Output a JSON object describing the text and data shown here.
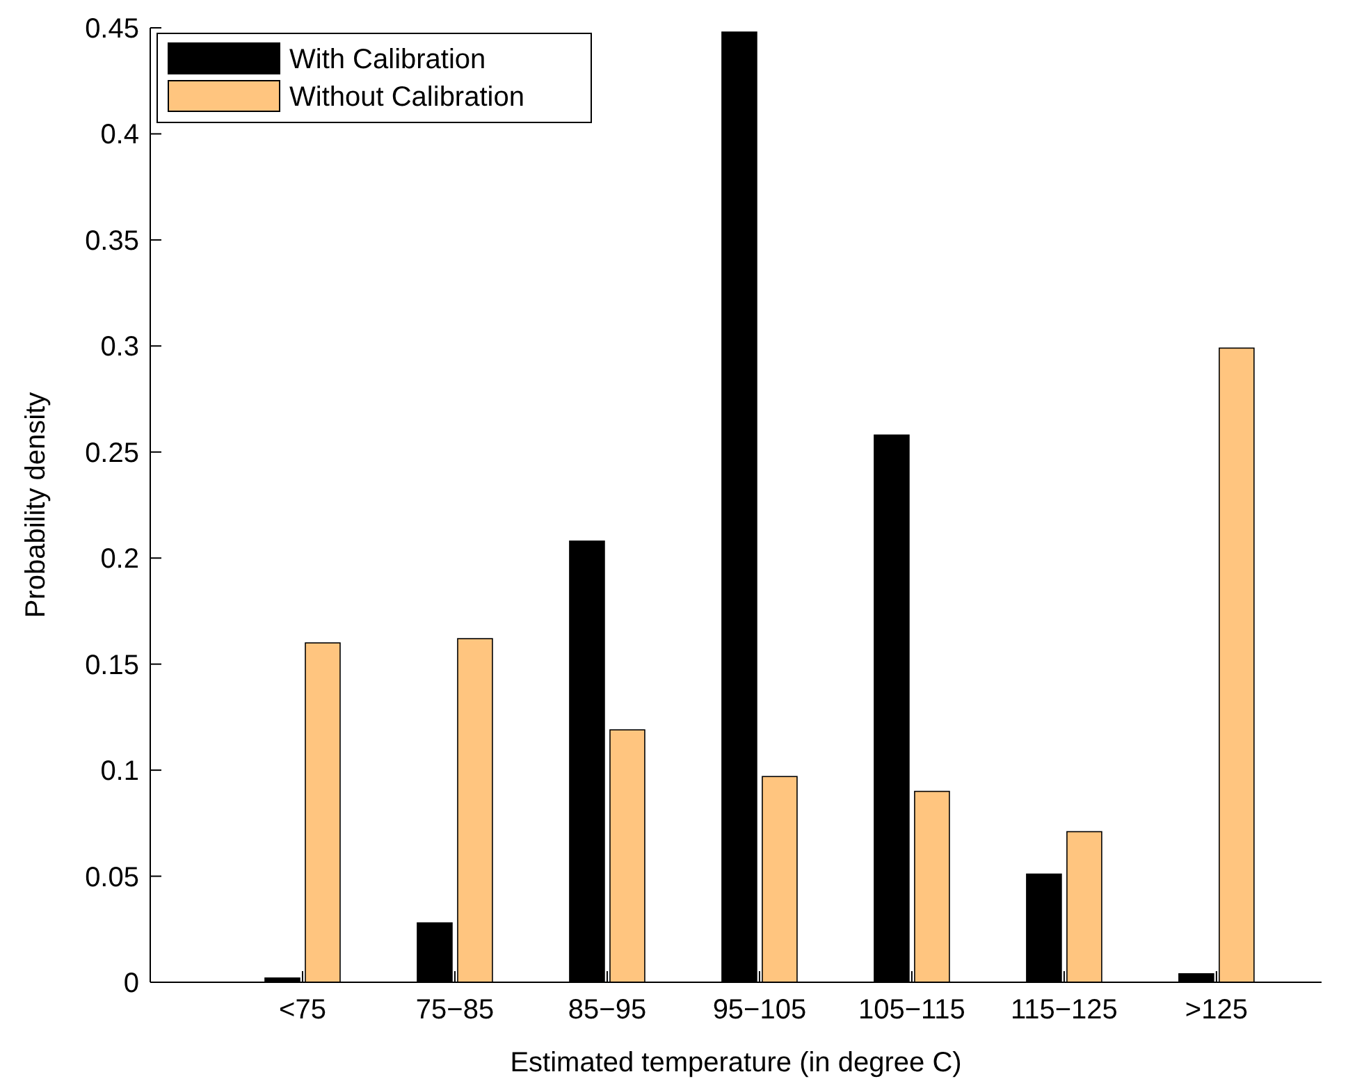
{
  "chart_data": {
    "type": "bar",
    "xlabel": "Estimated temperature (in degree C)",
    "ylabel": "Probability density",
    "categories": [
      "<75",
      "75−85",
      "85−95",
      "95−105",
      "105−115",
      "115−125",
      ">125"
    ],
    "series": [
      {
        "name": "With Calibration",
        "color": "#000000",
        "values": [
          0.002,
          0.028,
          0.208,
          0.448,
          0.258,
          0.051,
          0.004
        ]
      },
      {
        "name": "Without Calibration",
        "color": "#ffc57f",
        "values": [
          0.16,
          0.162,
          0.119,
          0.097,
          0.09,
          0.071,
          0.299
        ]
      }
    ],
    "ylim": [
      0,
      0.45
    ],
    "yticks": [
      0,
      0.05,
      0.1,
      0.15,
      0.2,
      0.25,
      0.3,
      0.35,
      0.4,
      0.45
    ],
    "grid": false,
    "legend": "top left"
  }
}
